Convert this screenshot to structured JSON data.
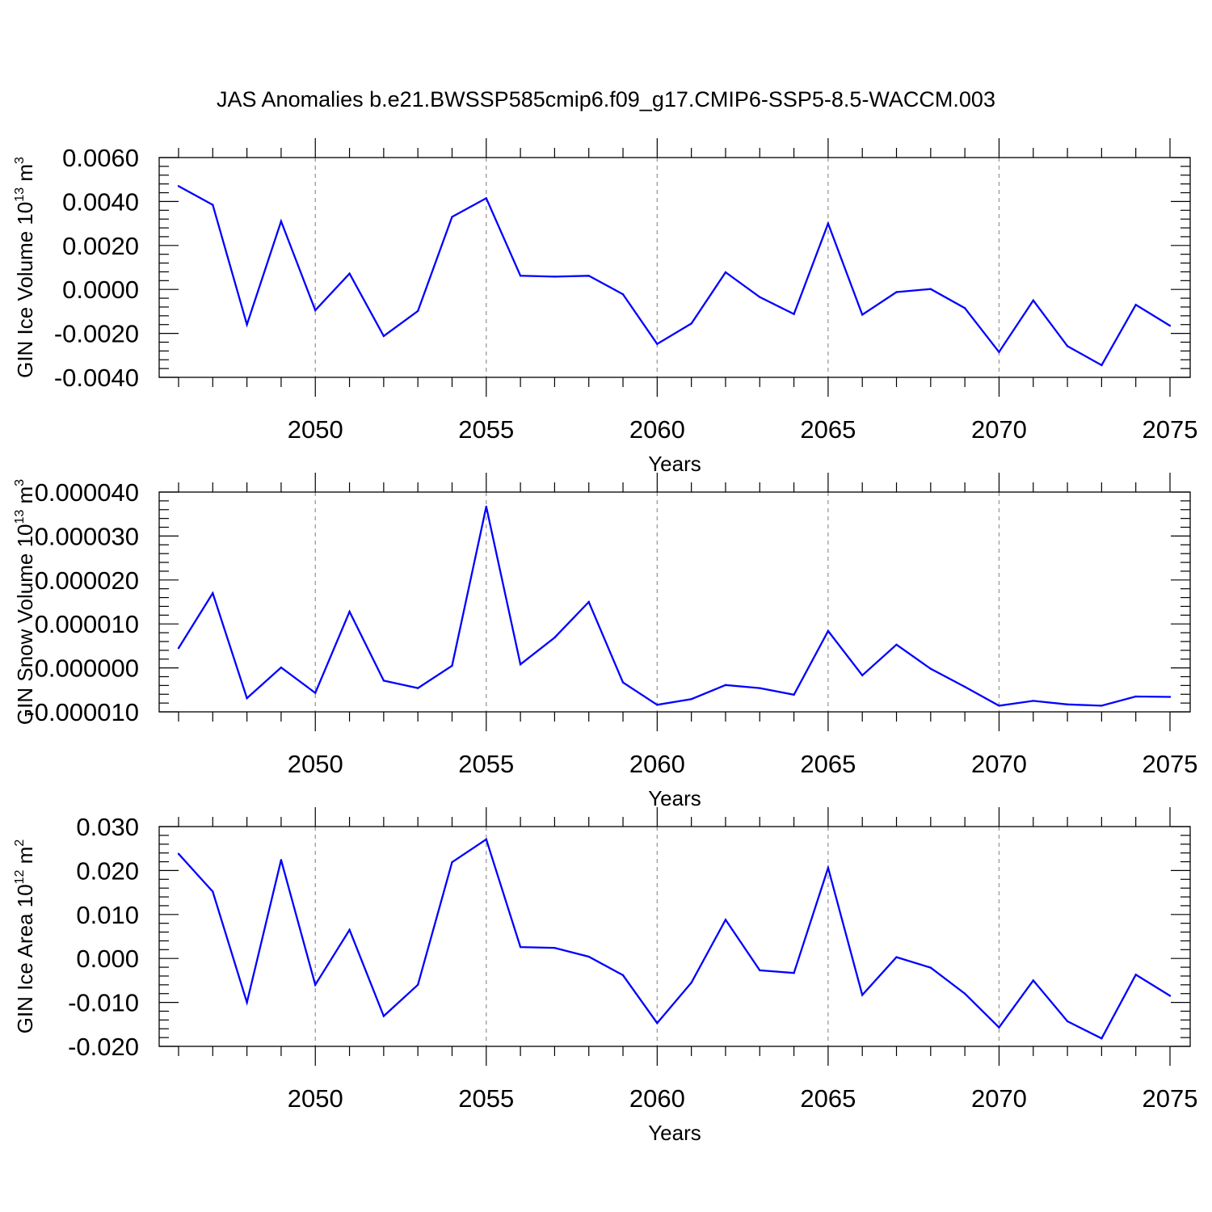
{
  "title": "JAS Anomalies b.e21.BWSSP585cmip6.f09_g17.CMIP6-SSP5-8.5-WACCM.003",
  "colors": {
    "series": "#0000ff",
    "axis": "#000000",
    "grid": "#999999"
  },
  "chart_data": [
    {
      "type": "line",
      "name": "ice-volume",
      "ylabel_base": "GIN Ice Volume 10",
      "ylabel_exp": "13",
      "ylabel_unit": " m",
      "ylabel_unit_exp": "3",
      "xlabel": "Years",
      "xlim": [
        2046,
        2075
      ],
      "ylim": [
        -0.004,
        0.006
      ],
      "x_ticks": [
        "2050",
        "2055",
        "2060",
        "2065",
        "2070",
        "2075"
      ],
      "y_ticks": [
        "0.0060",
        "0.0040",
        "0.0020",
        "0.0000",
        "-0.0020",
        "-0.0040"
      ],
      "x": [
        2046,
        2047,
        2048,
        2049,
        2050,
        2051,
        2052,
        2053,
        2054,
        2055,
        2056,
        2057,
        2058,
        2059,
        2060,
        2061,
        2062,
        2063,
        2064,
        2065,
        2066,
        2067,
        2068,
        2069,
        2070,
        2071,
        2072,
        2073,
        2074,
        2075
      ],
      "values": [
        0.0047,
        0.00385,
        -0.0016,
        0.0031,
        -0.00095,
        0.00072,
        -0.00212,
        -0.00098,
        0.0033,
        0.00415,
        0.00062,
        0.00058,
        0.00062,
        -0.00022,
        -0.00248,
        -0.00155,
        0.00078,
        -0.00035,
        -0.00112,
        0.003,
        -0.00115,
        -0.00012,
        2e-05,
        -0.00085,
        -0.00285,
        -0.0005,
        -0.00258,
        -0.00345,
        -0.0007,
        -0.00165
      ]
    },
    {
      "type": "line",
      "name": "snow-volume",
      "ylabel_base": "GIN Snow Volume 10",
      "ylabel_exp": "13",
      "ylabel_unit": " m",
      "ylabel_unit_exp": "3",
      "xlabel": "Years",
      "xlim": [
        2046,
        2075
      ],
      "ylim": [
        -1e-05,
        4e-05
      ],
      "x_ticks": [
        "2050",
        "2055",
        "2060",
        "2065",
        "2070",
        "2075"
      ],
      "y_ticks": [
        "0.000040",
        "0.000030",
        "0.000020",
        "0.000010",
        "0.000000",
        "-0.000010"
      ],
      "x": [
        2046,
        2047,
        2048,
        2049,
        2050,
        2051,
        2052,
        2053,
        2054,
        2055,
        2056,
        2057,
        2058,
        2059,
        2060,
        2061,
        2062,
        2063,
        2064,
        2065,
        2066,
        2067,
        2068,
        2069,
        2070,
        2071,
        2072,
        2073,
        2074,
        2075
      ],
      "values": [
        4.5e-06,
        1.7e-05,
        -6.9e-06,
        1e-07,
        -5.7e-06,
        1.28e-05,
        -2.9e-06,
        -4.6e-06,
        5e-07,
        3.67e-05,
        8e-07,
        6.9e-06,
        1.5e-05,
        -3.3e-06,
        -8.4e-06,
        -7.1e-06,
        -3.9e-06,
        -4.6e-06,
        -6.1e-06,
        8.4e-06,
        -1.7e-06,
        5.3e-06,
        -2e-07,
        -4.3e-06,
        -8.6e-06,
        -7.5e-06,
        -8.3e-06,
        -8.6e-06,
        -6.5e-06,
        -6.6e-06
      ]
    },
    {
      "type": "line",
      "name": "ice-area",
      "ylabel_base": "GIN Ice Area 10",
      "ylabel_exp": "12",
      "ylabel_unit": " m",
      "ylabel_unit_exp": "2",
      "xlabel": "Years",
      "xlim": [
        2046,
        2075
      ],
      "ylim": [
        -0.02,
        0.03
      ],
      "x_ticks": [
        "2050",
        "2055",
        "2060",
        "2065",
        "2070",
        "2075"
      ],
      "y_ticks": [
        "0.030",
        "0.020",
        "0.010",
        "0.000",
        "-0.010",
        "-0.020"
      ],
      "x": [
        2046,
        2047,
        2048,
        2049,
        2050,
        2051,
        2052,
        2053,
        2054,
        2055,
        2056,
        2057,
        2058,
        2059,
        2060,
        2061,
        2062,
        2063,
        2064,
        2065,
        2066,
        2067,
        2068,
        2069,
        2070,
        2071,
        2072,
        2073,
        2074,
        2075
      ],
      "values": [
        0.0238,
        0.0152,
        -0.01,
        0.0224,
        -0.006,
        0.0065,
        -0.0131,
        -0.006,
        0.0219,
        0.0271,
        0.0026,
        0.0024,
        0.0004,
        -0.0038,
        -0.0147,
        -0.0055,
        0.0088,
        -0.0027,
        -0.0033,
        0.0206,
        -0.0083,
        0.0003,
        -0.0021,
        -0.008,
        -0.0157,
        -0.005,
        -0.0143,
        -0.0182,
        -0.0037,
        -0.0085
      ]
    }
  ]
}
